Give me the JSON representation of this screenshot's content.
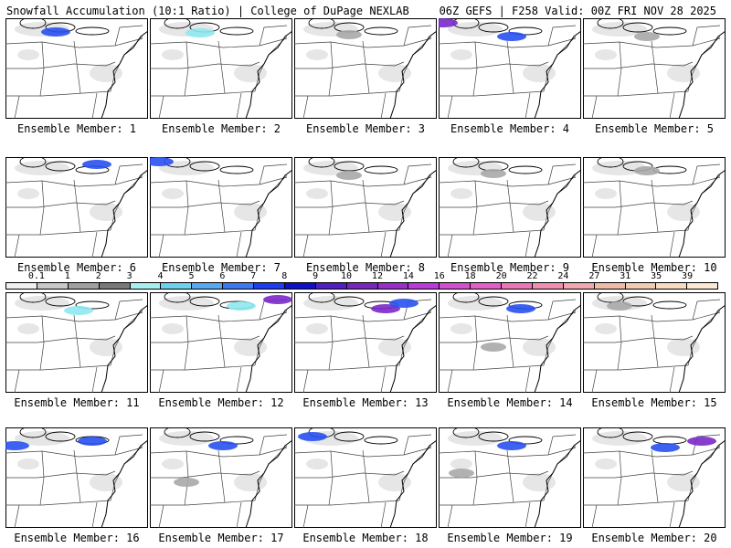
{
  "header": {
    "left_title": "Snowfall Accumulation (10:1 Ratio) | College of DuPage NEXLAB",
    "right_title": "06Z GEFS | F258 Valid: 00Z FRI NOV 28 2025"
  },
  "colorbar": {
    "labels": [
      "0.1",
      "1",
      "2",
      "3",
      "4",
      "5",
      "6",
      "7",
      "8",
      "9",
      "10",
      "12",
      "14",
      "16",
      "18",
      "20",
      "22",
      "24",
      "27",
      "31",
      "35",
      "39"
    ],
    "colors": [
      "#f0f0f0",
      "#c8c8c8",
      "#a0a0a0",
      "#787878",
      "#a8f0f0",
      "#70d0f0",
      "#5aa8f0",
      "#3c78f0",
      "#1e3cf0",
      "#1010c8",
      "#5020c0",
      "#7828b8",
      "#9830c8",
      "#b83cd8",
      "#d050d0",
      "#e060c8",
      "#e878b8",
      "#f090b0",
      "#f0a8b0",
      "#f0bca8",
      "#f0ccb0",
      "#f8dcc0",
      "#fce8d4"
    ]
  },
  "panels": [
    {
      "label": "Ensemble Member: 1",
      "snow": [
        {
          "t": "blue",
          "x": 55,
          "y": 15
        }
      ]
    },
    {
      "label": "Ensemble Member: 2",
      "snow": [
        {
          "t": "cyan",
          "x": 55,
          "y": 16
        }
      ]
    },
    {
      "label": "Ensemble Member: 3",
      "snow": [
        {
          "t": "gray",
          "x": 60,
          "y": 18
        }
      ]
    },
    {
      "label": "Ensemble Member: 4",
      "snow": [
        {
          "t": "blue",
          "x": 80,
          "y": 20
        },
        {
          "t": "purple",
          "x": 5,
          "y": 5
        }
      ]
    },
    {
      "label": "Ensemble Member: 5",
      "snow": [
        {
          "t": "gray",
          "x": 70,
          "y": 20
        }
      ]
    },
    {
      "label": "Ensemble Member: 6",
      "snow": [
        {
          "t": "blue",
          "x": 100,
          "y": 8
        }
      ]
    },
    {
      "label": "Ensemble Member: 7",
      "snow": [
        {
          "t": "blue",
          "x": 10,
          "y": 5
        }
      ]
    },
    {
      "label": "Ensemble Member: 8",
      "snow": [
        {
          "t": "gray",
          "x": 60,
          "y": 20
        }
      ]
    },
    {
      "label": "Ensemble Member: 9",
      "snow": [
        {
          "t": "gray",
          "x": 60,
          "y": 18
        }
      ]
    },
    {
      "label": "Ensemble Member: 10",
      "snow": [
        {
          "t": "gray",
          "x": 70,
          "y": 15
        }
      ]
    },
    {
      "label": "Ensemble Member: 11",
      "snow": [
        {
          "t": "cyan",
          "x": 80,
          "y": 20
        }
      ]
    },
    {
      "label": "Ensemble Member: 12",
      "snow": [
        {
          "t": "cyan",
          "x": 100,
          "y": 15
        },
        {
          "t": "purple",
          "x": 140,
          "y": 8
        }
      ]
    },
    {
      "label": "Ensemble Member: 13",
      "snow": [
        {
          "t": "purple",
          "x": 100,
          "y": 18
        },
        {
          "t": "blue",
          "x": 120,
          "y": 12
        }
      ]
    },
    {
      "label": "Ensemble Member: 14",
      "snow": [
        {
          "t": "blue",
          "x": 90,
          "y": 18
        },
        {
          "t": "gray",
          "x": 60,
          "y": 60
        }
      ]
    },
    {
      "label": "Ensemble Member: 15",
      "snow": [
        {
          "t": "gray",
          "x": 40,
          "y": 15
        }
      ]
    },
    {
      "label": "Ensemble Member: 16",
      "snow": [
        {
          "t": "blue",
          "x": 95,
          "y": 15
        },
        {
          "t": "blue",
          "x": 10,
          "y": 20
        }
      ]
    },
    {
      "label": "Ensemble Member: 17",
      "snow": [
        {
          "t": "blue",
          "x": 80,
          "y": 20
        },
        {
          "t": "gray",
          "x": 40,
          "y": 60
        }
      ]
    },
    {
      "label": "Ensemble Member: 18",
      "snow": [
        {
          "t": "blue",
          "x": 20,
          "y": 10
        }
      ]
    },
    {
      "label": "Ensemble Member: 19",
      "snow": [
        {
          "t": "blue",
          "x": 80,
          "y": 20
        },
        {
          "t": "gray",
          "x": 25,
          "y": 50
        }
      ]
    },
    {
      "label": "Ensemble Member: 20",
      "snow": [
        {
          "t": "purple",
          "x": 130,
          "y": 15
        },
        {
          "t": "blue",
          "x": 90,
          "y": 22
        }
      ]
    }
  ]
}
